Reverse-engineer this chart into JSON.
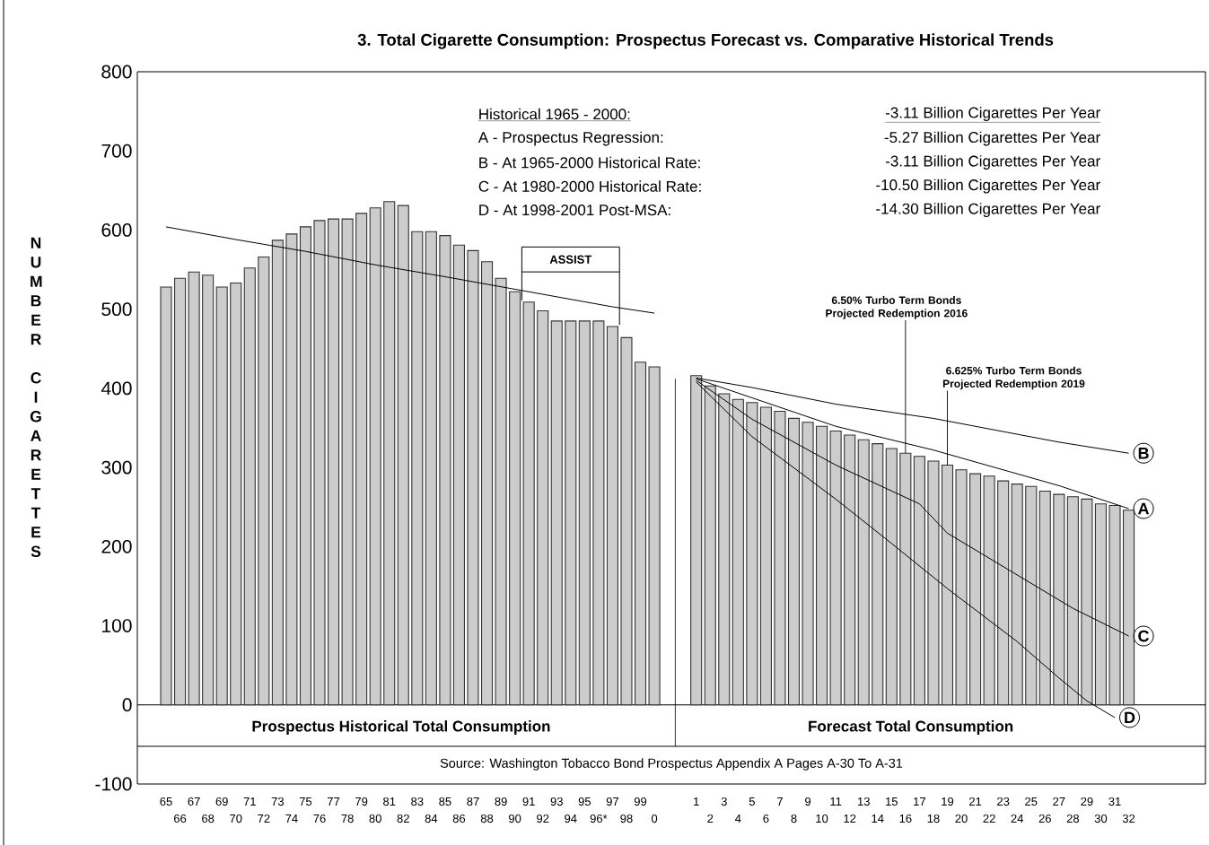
{
  "chart_data": {
    "type": "bar",
    "title": "3. Total Cigarette Consumption: Prospectus Forecast vs. Comparative Historical Trends",
    "ylabel": "NUMBER CIGARETTES",
    "categories": [
      "65",
      "66",
      "67",
      "68",
      "69",
      "70",
      "71",
      "72",
      "73",
      "74",
      "75",
      "76",
      "77",
      "78",
      "79",
      "80",
      "81",
      "82",
      "83",
      "84",
      "85",
      "86",
      "87",
      "88",
      "89",
      "90",
      "91",
      "92",
      "93",
      "94",
      "95",
      "96*",
      "97",
      "98",
      "99",
      "0",
      null,
      null,
      "1",
      "2",
      "3",
      "4",
      "5",
      "6",
      "7",
      "8",
      "9",
      "10",
      "11",
      "12",
      "13",
      "14",
      "15",
      "16",
      "17",
      "18",
      "19",
      "20",
      "21",
      "22",
      "23",
      "24",
      "25",
      "26",
      "27",
      "28",
      "29",
      "30",
      "31",
      "32"
    ],
    "series": [
      {
        "color": "#cccccc",
        "values": [
          528,
          539,
          547,
          543,
          528,
          533,
          552,
          566,
          587,
          595,
          604,
          612,
          614,
          614,
          621,
          628,
          636,
          631,
          598,
          598,
          593,
          581,
          574,
          560,
          539,
          522,
          509,
          498,
          485,
          485,
          485,
          485,
          478,
          464,
          433,
          427,
          null,
          null,
          416,
          403,
          393,
          386,
          382,
          376,
          371,
          362,
          357,
          352,
          346,
          341,
          335,
          330,
          324,
          318,
          314,
          308,
          303,
          297,
          292,
          289,
          283,
          279,
          276,
          270,
          266,
          263,
          260,
          254,
          252,
          246
        ]
      },
      {
        "type": "line",
        "color": "#000000",
        "x": [
          "65",
          "70",
          "75",
          "80",
          "85",
          "91",
          "97",
          "0"
        ],
        "values": [
          604,
          588,
          573,
          556,
          541,
          522,
          503,
          495
        ]
      },
      {
        "type": "line",
        "name": "B",
        "color": "#000000",
        "x": [
          "1",
          "5",
          "11",
          "18",
          "27",
          "32"
        ],
        "values": [
          413,
          401,
          380,
          362,
          332,
          318
        ]
      },
      {
        "type": "line",
        "name": "A",
        "color": "#000000",
        "x": [
          "1",
          "5",
          "11",
          "18",
          "27",
          "32"
        ],
        "values": [
          412,
          388,
          352,
          322,
          277,
          248
        ]
      },
      {
        "type": "line",
        "name": "C",
        "color": "#000000",
        "x": [
          "1",
          "5",
          "11",
          "17",
          "19",
          "28",
          "32"
        ],
        "values": [
          410,
          361,
          303,
          254,
          217,
          122,
          87
        ]
      },
      {
        "type": "line",
        "name": "D",
        "color": "#000000",
        "x": [
          "1",
          "5",
          "11",
          "15",
          "19",
          "24",
          "27",
          "29",
          "31"
        ],
        "values": [
          408,
          339,
          260,
          204,
          147,
          80,
          34,
          5,
          -16
        ]
      }
    ],
    "legend": "right",
    "ylim": [
      -100,
      800
    ],
    "yticks": [
      -100,
      0,
      100,
      200,
      300,
      400,
      500,
      600,
      700,
      800
    ],
    "annotations": [
      "Historical 1965 - 2000:",
      "A - Prospectus Regression:",
      "B - At 1965-2000 Historical Rate:",
      "C - At 1980-2000 Historical Rate:",
      "D - At 1998-2001 Post-MSA:",
      "-3.11 Billion Cigarettes Per Year",
      "-5.27 Billion Cigarettes Per Year",
      "-3.11 Billion Cigarettes Per Year",
      "-10.50 Billion Cigarettes Per Year",
      "-14.30 Billion Cigarettes Per Year",
      "Prospectus Historical Total Consumption",
      "Forecast Total Consumption",
      "Source: Washington Tobacco Bond Prospectus Appendix A Pages A-30 To A-31",
      "ASSIST",
      {
        "text": "6.50% Turbo Term Bonds Projected Redemption 2016",
        "x": "16",
        "y": 318
      },
      {
        "text": "6.625% Turbo Term Bonds Projected Redemption 2019",
        "x": "19",
        "y": 303
      }
    ]
  }
}
